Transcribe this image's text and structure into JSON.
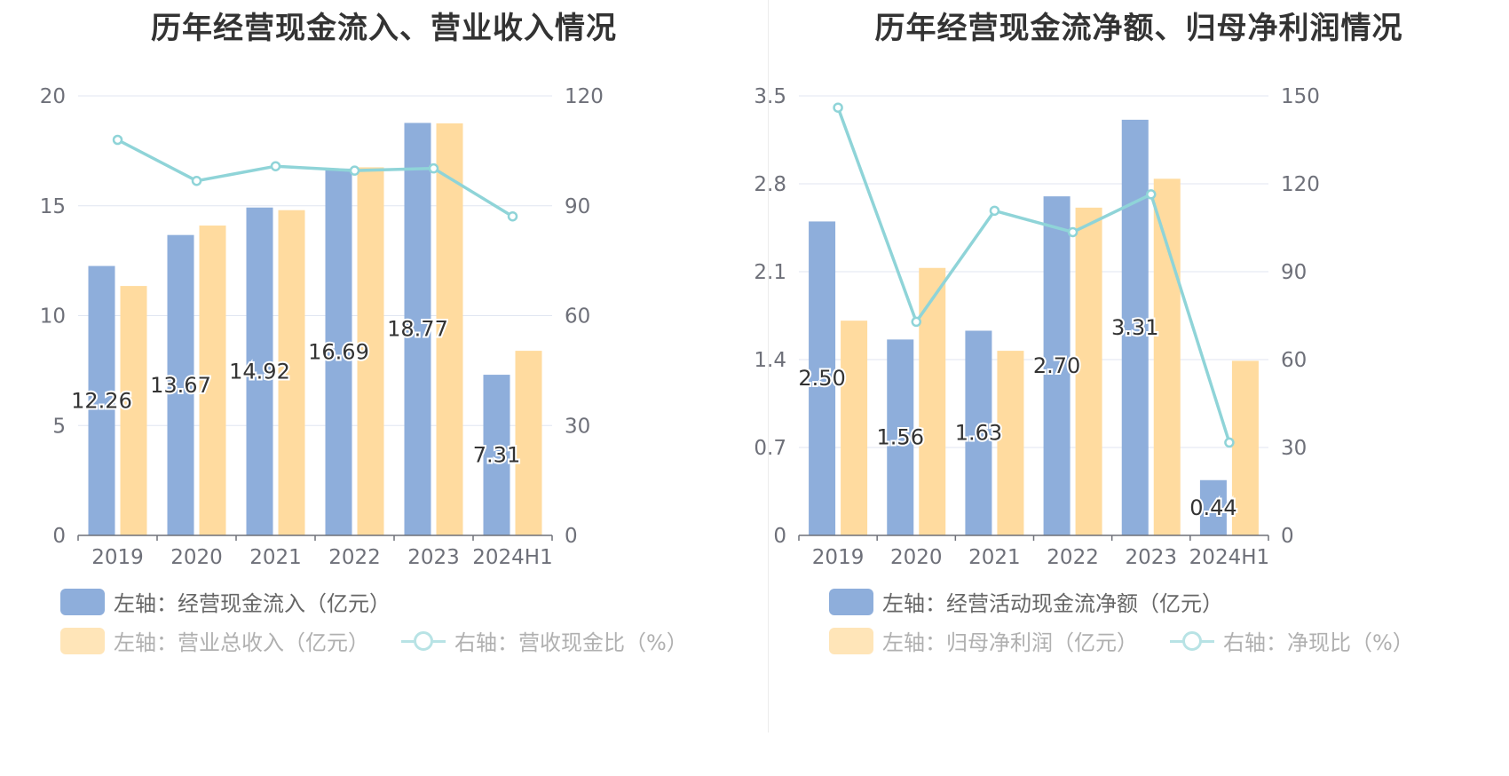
{
  "chart_data": [
    {
      "type": "bar",
      "title": "历年经营现金流入、营业收入情况",
      "categories": [
        "2019",
        "2020",
        "2021",
        "2022",
        "2023",
        "2024H1"
      ],
      "left_axis": {
        "min": 0,
        "max": 20,
        "ticks": [
          "0",
          "5",
          "10",
          "15",
          "20"
        ]
      },
      "right_axis": {
        "min": 0,
        "max": 120,
        "ticks": [
          "0",
          "30",
          "60",
          "90",
          "120"
        ]
      },
      "series": [
        {
          "name": "左轴：经营现金流入（亿元）",
          "type": "bar",
          "axis": "left",
          "color": "#8eaedb",
          "values": [
            12.26,
            13.67,
            14.92,
            16.69,
            18.77,
            7.31
          ],
          "labels": [
            "12.26",
            "13.67",
            "14.92",
            "16.69",
            "18.77",
            "7.31"
          ]
        },
        {
          "name": "左轴：营业总收入（亿元）",
          "type": "bar",
          "axis": "left",
          "color": "#ffdb9f",
          "values": [
            11.35,
            14.1,
            14.8,
            16.75,
            18.75,
            8.4
          ]
        },
        {
          "name": "右轴：营收现金比（%）",
          "type": "line",
          "axis": "right",
          "color": "#8fd4d8",
          "values": [
            108,
            96.8,
            100.8,
            99.6,
            100.2,
            87.1
          ]
        }
      ],
      "grid": true
    },
    {
      "type": "bar",
      "title": "历年经营现金流净额、归母净利润情况",
      "categories": [
        "2019",
        "2020",
        "2021",
        "2022",
        "2023",
        "2024H1"
      ],
      "left_axis": {
        "min": 0,
        "max": 3.5,
        "ticks": [
          "0",
          "0.7",
          "1.4",
          "2.1",
          "2.8",
          "3.5"
        ]
      },
      "right_axis": {
        "min": 0,
        "max": 150,
        "ticks": [
          "0",
          "30",
          "60",
          "90",
          "120",
          "150"
        ]
      },
      "series": [
        {
          "name": "左轴：经营活动现金流净额（亿元）",
          "type": "bar",
          "axis": "left",
          "color": "#8eaedb",
          "values": [
            2.5,
            1.56,
            1.63,
            2.7,
            3.31,
            0.44
          ],
          "labels": [
            "2.50",
            "1.56",
            "1.63",
            "2.70",
            "3.31",
            "0.44"
          ]
        },
        {
          "name": "左轴：归母净利润（亿元）",
          "type": "bar",
          "axis": "left",
          "color": "#ffdb9f",
          "values": [
            1.71,
            2.13,
            1.47,
            2.61,
            2.84,
            1.39
          ]
        },
        {
          "name": "右轴：净现比（%）",
          "type": "line",
          "axis": "right",
          "color": "#8fd4d8",
          "values": [
            146,
            72.9,
            110.8,
            103.5,
            116.4,
            31.7
          ]
        }
      ],
      "grid": true
    }
  ]
}
